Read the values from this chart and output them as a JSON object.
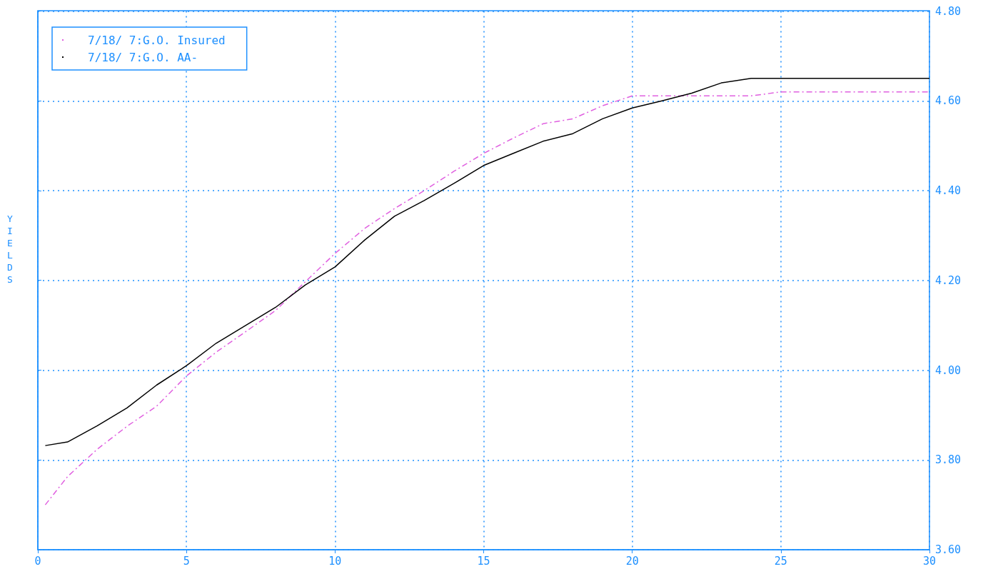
{
  "chart_data": {
    "type": "line",
    "ylabel": "YIELDS",
    "x": [
      0.25,
      1,
      2,
      3,
      4,
      5,
      6,
      7,
      8,
      9,
      10,
      11,
      12,
      13,
      14,
      15,
      16,
      17,
      18,
      19,
      20,
      21,
      22,
      23,
      24,
      25,
      30
    ],
    "series": [
      {
        "name": "7/18/ 7:G.O. Insured",
        "color": "#e060e0",
        "line_style": "dashed",
        "values": [
          3.7,
          3.763,
          3.824,
          3.875,
          3.92,
          3.987,
          4.04,
          4.086,
          4.133,
          4.197,
          4.26,
          4.316,
          4.36,
          4.4,
          4.443,
          4.483,
          4.517,
          4.549,
          4.56,
          4.589,
          4.611,
          4.611,
          4.611,
          4.611,
          4.611,
          4.62,
          4.62
        ]
      },
      {
        "name": "7/18/ 7:G.O. AA-",
        "color": "#000000",
        "line_style": "solid",
        "values": [
          3.832,
          3.84,
          3.876,
          3.916,
          3.967,
          4.01,
          4.06,
          4.1,
          4.14,
          4.19,
          4.23,
          4.29,
          4.343,
          4.378,
          4.416,
          4.456,
          4.483,
          4.51,
          4.527,
          4.56,
          4.584,
          4.6,
          4.617,
          4.64,
          4.65,
          4.65,
          4.65
        ]
      }
    ],
    "xlim": [
      0,
      30
    ],
    "xticks": [
      0,
      5,
      10,
      15,
      20,
      25,
      30
    ],
    "ylim": [
      3.6,
      4.8
    ],
    "yticks": [
      {
        "value": 3.6,
        "label": "3.60"
      },
      {
        "value": 3.8,
        "label": "3.80"
      },
      {
        "value": 4.0,
        "label": "4.00"
      },
      {
        "value": 4.2,
        "label": "4.20"
      },
      {
        "value": 4.4,
        "label": "4.40"
      },
      {
        "value": 4.6,
        "label": "4.60"
      },
      {
        "value": 4.8,
        "label": "4.80"
      }
    ],
    "grid": true,
    "legend": "top left",
    "marker": "none"
  }
}
